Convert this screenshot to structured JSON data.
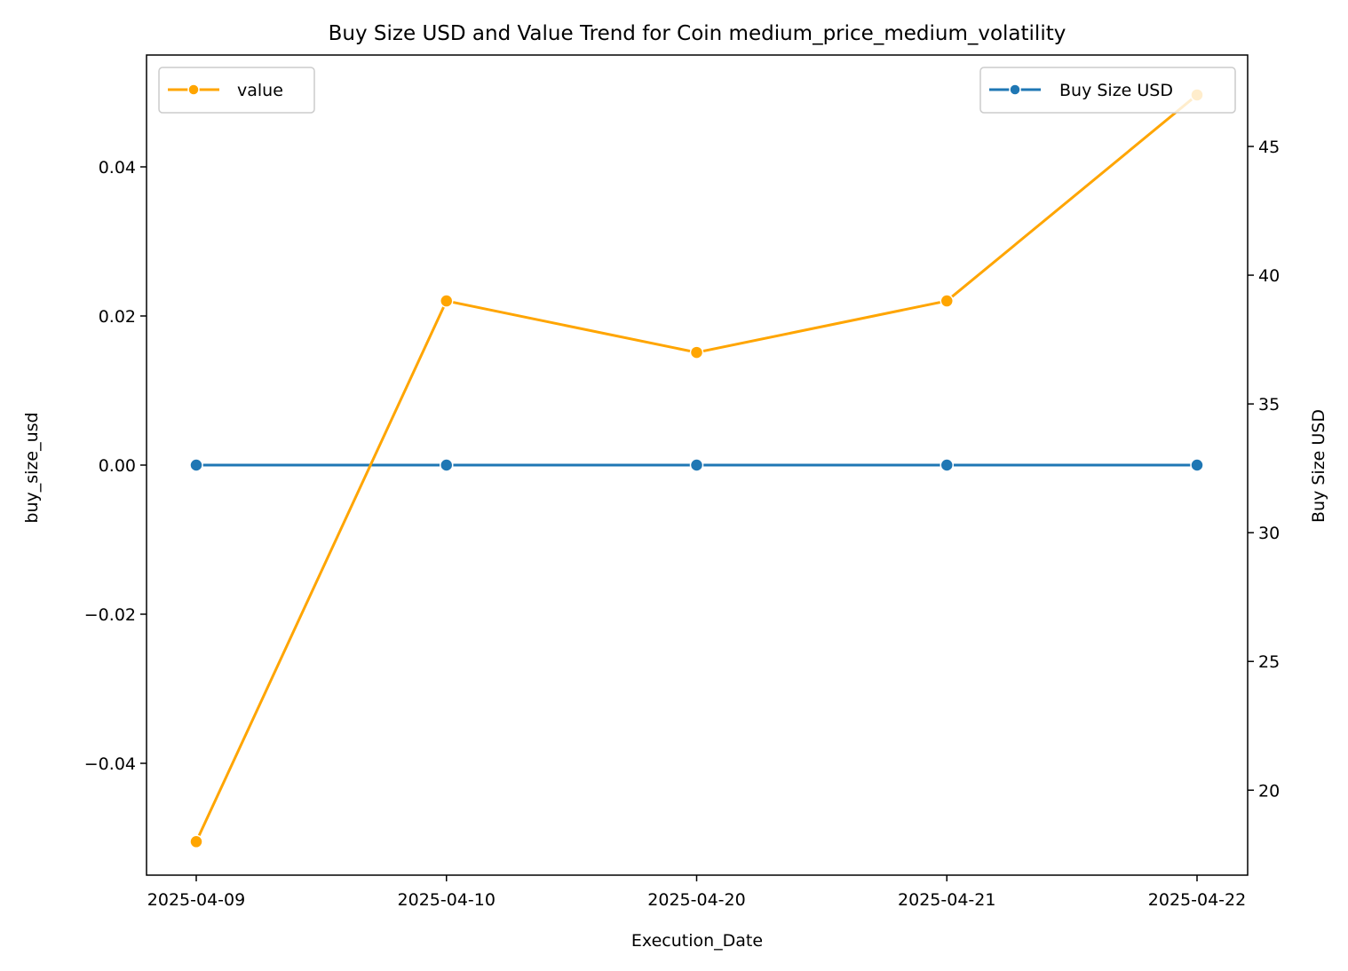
{
  "chart_data": {
    "type": "line",
    "title": "Buy Size USD and Value Trend for Coin medium_price_medium_volatility",
    "xlabel": "Execution_Date",
    "categories": [
      "2025-04-09",
      "2025-04-10",
      "2025-04-20",
      "2025-04-21",
      "2025-04-22"
    ],
    "left_axis": {
      "label": "buy_size_usd",
      "ylim": [
        -0.055,
        0.055
      ],
      "ticks": [
        -0.04,
        -0.02,
        0.0,
        0.02,
        0.04
      ],
      "tick_labels": [
        "−0.04",
        "−0.02",
        "0.00",
        "0.02",
        "0.04"
      ]
    },
    "right_axis": {
      "label": "Buy Size USD",
      "ylim": [
        16.7,
        48.55
      ],
      "ticks": [
        20,
        25,
        30,
        35,
        40,
        45
      ],
      "tick_labels": [
        "20",
        "25",
        "30",
        "35",
        "40",
        "45"
      ]
    },
    "series": [
      {
        "name": "Buy Size USD",
        "axis": "left",
        "color": "#1f77b4",
        "values": [
          0,
          0,
          0,
          0,
          0
        ]
      },
      {
        "name": "value",
        "axis": "right",
        "color": "#ffa500",
        "values": [
          18,
          39,
          37,
          39,
          47
        ]
      }
    ],
    "legends": [
      {
        "position": "upper-left",
        "entries": [
          "value"
        ]
      },
      {
        "position": "upper-right",
        "entries": [
          "Buy Size USD"
        ]
      }
    ],
    "grid": false
  }
}
